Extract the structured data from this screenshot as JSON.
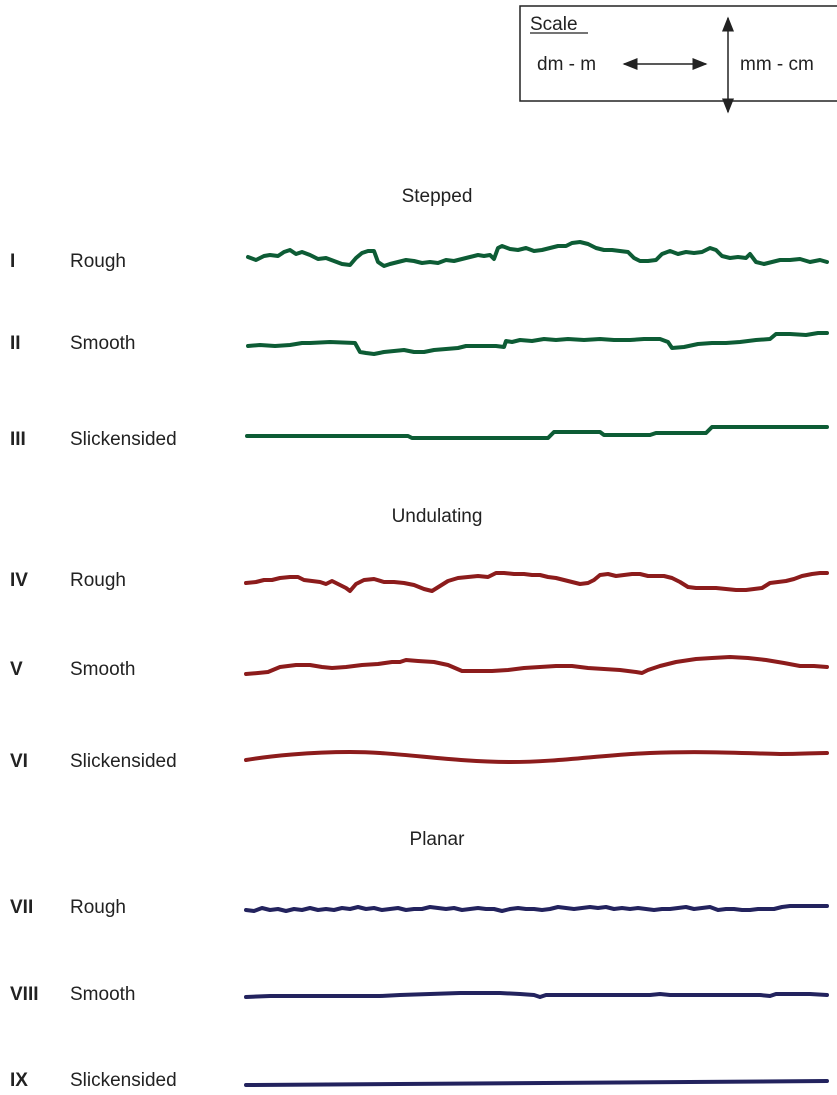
{
  "scale_box": {
    "title": "Scale",
    "horizontal_label": "dm - m",
    "vertical_label": "mm - cm"
  },
  "groups": [
    {
      "header": "Stepped",
      "color": "#0d5c35",
      "rows": [
        {
          "numeral": "I",
          "label": "Rough"
        },
        {
          "numeral": "II",
          "label": "Smooth"
        },
        {
          "numeral": "III",
          "label": "Slickensided"
        }
      ]
    },
    {
      "header": "Undulating",
      "color": "#8c1c1c",
      "rows": [
        {
          "numeral": "IV",
          "label": "Rough"
        },
        {
          "numeral": "V",
          "label": "Smooth"
        },
        {
          "numeral": "VI",
          "label": "Slickensided"
        }
      ]
    },
    {
      "header": "Planar",
      "color": "#23235e",
      "rows": [
        {
          "numeral": "VII",
          "label": "Rough"
        },
        {
          "numeral": "VIII",
          "label": "Smooth"
        },
        {
          "numeral": "IX",
          "label": "Slickensided"
        }
      ]
    }
  ]
}
